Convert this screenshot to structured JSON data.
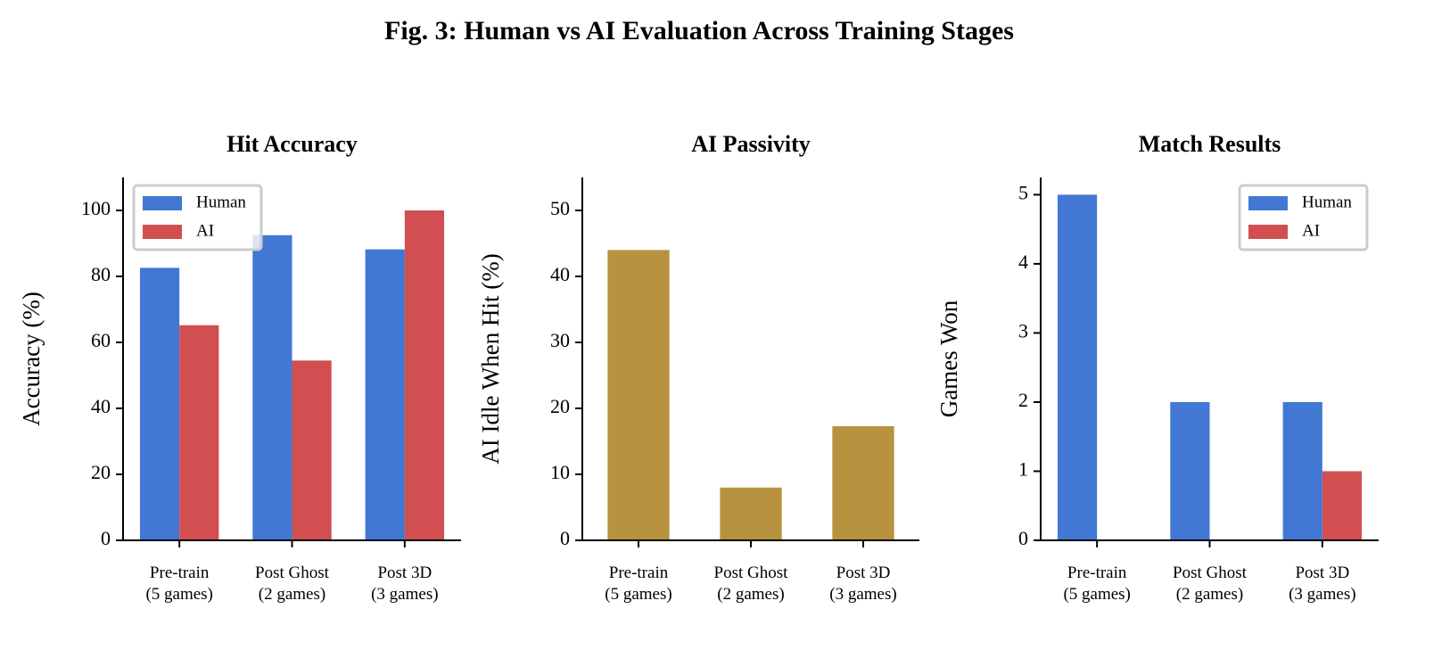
{
  "title": "Fig. 3: Human vs AI Evaluation Across Training Stages",
  "chart_data": [
    {
      "type": "bar",
      "title": "Hit Accuracy",
      "y_label": "Accuracy (%)",
      "categories": [
        "Pre-train\n(5 games)",
        "Post Ghost\n(2 games)",
        "Post 3D\n(3 games)"
      ],
      "series": [
        {
          "name": "Human",
          "color": "#4278d4",
          "values": [
            82.6,
            92.5,
            88.2
          ]
        },
        {
          "name": "AI",
          "color": "#d14f50",
          "values": [
            65.2,
            54.5,
            100
          ]
        }
      ],
      "ylim": [
        0,
        110
      ],
      "yticks": [
        0,
        20,
        40,
        60,
        80,
        100
      ],
      "legend": "upper left"
    },
    {
      "type": "bar",
      "title": "AI Passivity",
      "y_label": "AI Idle When Hit (%)",
      "categories": [
        "Pre-train\n(5 games)",
        "Post Ghost\n(2 games)",
        "Post 3D\n(3 games)"
      ],
      "values": [
        44,
        8,
        17.3
      ],
      "color": "#b8923f",
      "ylim": [
        0,
        55
      ],
      "yticks": [
        0,
        10,
        20,
        30,
        40,
        50
      ]
    },
    {
      "type": "bar",
      "title": "Match Results",
      "y_label": "Games Won",
      "categories": [
        "Pre-train\n(5 games)",
        "Post Ghost\n(2 games)",
        "Post 3D\n(3 games)"
      ],
      "series": [
        {
          "name": "Human",
          "color": "#4278d4",
          "values": [
            5,
            2,
            2
          ]
        },
        {
          "name": "AI",
          "color": "#d14f50",
          "values": [
            0,
            0,
            1
          ]
        }
      ],
      "ylim": [
        0,
        5.25
      ],
      "yticks": [
        0,
        1,
        2,
        3,
        4,
        5
      ],
      "legend": "upper right"
    }
  ]
}
